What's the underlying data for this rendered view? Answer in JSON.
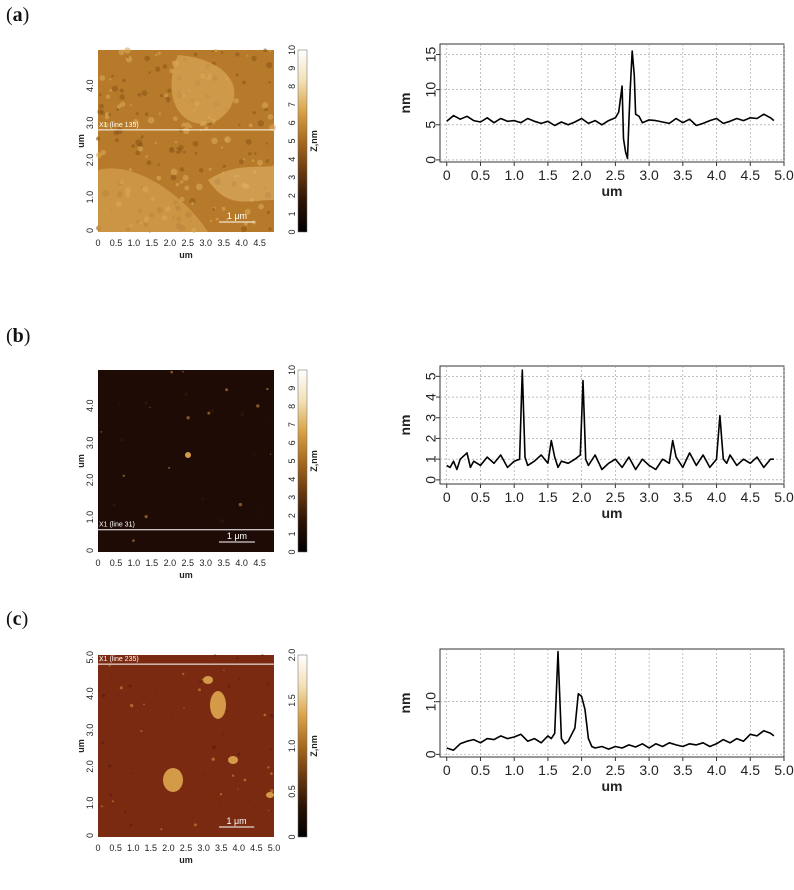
{
  "panels": [
    {
      "label_open": "(",
      "label_letter": "a",
      "label_close": ")",
      "afm": {
        "line_label": "X1 (line 135)",
        "scale_bar": "1 μm",
        "x_axis_label": "um",
        "y_axis_label": "um",
        "x_ticks": [
          "0",
          "0.5",
          "1.0",
          "1.5",
          "2.0",
          "2.5",
          "3.0",
          "3.5",
          "4.0",
          "4.5"
        ],
        "y_ticks": [
          "0",
          "1.0",
          "2.0",
          "3.0",
          "4.0"
        ],
        "colorbar_label": "Z,nm",
        "colorbar_ticks": [
          "0",
          "1",
          "2",
          "3",
          "4",
          "5",
          "6",
          "7",
          "8",
          "9",
          "10"
        ],
        "line_position_um": 2.75
      }
    },
    {
      "label_open": "(",
      "label_letter": "b",
      "label_close": ")",
      "afm": {
        "line_label": "X1 (line 31)",
        "scale_bar": "1 μm",
        "x_axis_label": "um",
        "y_axis_label": "um",
        "x_ticks": [
          "0",
          "0.5",
          "1.0",
          "1.5",
          "2.0",
          "2.5",
          "3.0",
          "3.5",
          "4.0",
          "4.5"
        ],
        "y_ticks": [
          "0",
          "1.0",
          "2.0",
          "3.0",
          "4.0"
        ],
        "colorbar_label": "Z,nm",
        "colorbar_ticks": [
          "0",
          "1",
          "2",
          "3",
          "4",
          "5",
          "6",
          "7",
          "8",
          "9",
          "10"
        ],
        "line_position_um": 0.6
      }
    },
    {
      "label_open": "(",
      "label_letter": "c",
      "label_close": ")",
      "afm": {
        "line_label": "X1 (line 235)",
        "scale_bar": "1 μm",
        "x_axis_label": "um",
        "y_axis_label": "um",
        "x_ticks": [
          "0",
          "0.5",
          "1.0",
          "1.5",
          "2.0",
          "2.5",
          "3.0",
          "3.5",
          "4.0",
          "4.5",
          "5.0"
        ],
        "y_ticks": [
          "0",
          "1.0",
          "2.0",
          "3.0",
          "4.0",
          "5.0"
        ],
        "colorbar_label": "Z,nm",
        "colorbar_ticks": [
          "0",
          "0.5",
          "1.0",
          "1.5",
          "2.0"
        ],
        "line_position_um": 4.75
      }
    }
  ],
  "chart_data": [
    {
      "type": "line",
      "xlabel": "um",
      "ylabel": "nm",
      "xlim": [
        -0.1,
        5.0
      ],
      "ylim": [
        -0.3,
        16.5
      ],
      "x_ticks": [
        "0",
        "0.5",
        "1.0",
        "1.5",
        "2.0",
        "2.5",
        "3.0",
        "3.5",
        "4.0",
        "4.5",
        "5.0"
      ],
      "y_ticks": [
        "0",
        "5",
        "10",
        "15"
      ],
      "grid": true,
      "series": [
        {
          "x": [
            0,
            0.1,
            0.2,
            0.3,
            0.4,
            0.5,
            0.6,
            0.7,
            0.8,
            0.9,
            1.0,
            1.1,
            1.2,
            1.3,
            1.4,
            1.5,
            1.6,
            1.7,
            1.8,
            1.9,
            2.0,
            2.1,
            2.2,
            2.3,
            2.4,
            2.5,
            2.55,
            2.6,
            2.62,
            2.65,
            2.68,
            2.7,
            2.72,
            2.75,
            2.78,
            2.8,
            2.85,
            2.9,
            3.0,
            3.1,
            3.2,
            3.3,
            3.4,
            3.5,
            3.6,
            3.7,
            3.8,
            3.9,
            4.0,
            4.1,
            4.2,
            4.3,
            4.4,
            4.5,
            4.6,
            4.7,
            4.8,
            4.85
          ],
          "y": [
            5.5,
            6.3,
            5.8,
            6.2,
            5.6,
            5.4,
            6.0,
            5.3,
            5.9,
            5.5,
            5.6,
            5.3,
            5.9,
            5.5,
            5.2,
            5.5,
            4.9,
            5.4,
            5.0,
            5.4,
            5.9,
            5.2,
            5.6,
            5.0,
            5.6,
            6.0,
            6.8,
            10.5,
            3.0,
            1.2,
            0.2,
            5.5,
            10.0,
            15.5,
            12.0,
            6.5,
            6.2,
            5.3,
            5.7,
            5.6,
            5.4,
            5.2,
            5.9,
            5.3,
            5.8,
            4.9,
            5.2,
            5.6,
            5.9,
            5.2,
            5.5,
            5.9,
            5.6,
            6.0,
            5.9,
            6.5,
            6.0,
            5.6
          ]
        }
      ]
    },
    {
      "type": "line",
      "xlabel": "um",
      "ylabel": "nm",
      "xlim": [
        -0.1,
        5.0
      ],
      "ylim": [
        -0.2,
        5.5
      ],
      "x_ticks": [
        "0",
        "0.5",
        "1.0",
        "1.5",
        "2.0",
        "2.5",
        "3.0",
        "3.5",
        "4.0",
        "4.5",
        "5.0"
      ],
      "y_ticks": [
        "0",
        "1",
        "2",
        "3",
        "4",
        "5"
      ],
      "grid": true,
      "series": [
        {
          "x": [
            0,
            0.05,
            0.1,
            0.15,
            0.2,
            0.3,
            0.35,
            0.4,
            0.5,
            0.6,
            0.7,
            0.8,
            0.9,
            1.0,
            1.08,
            1.12,
            1.16,
            1.2,
            1.3,
            1.4,
            1.5,
            1.55,
            1.6,
            1.65,
            1.7,
            1.8,
            1.9,
            1.98,
            2.02,
            2.06,
            2.1,
            2.2,
            2.3,
            2.4,
            2.5,
            2.6,
            2.7,
            2.8,
            2.9,
            3.0,
            3.1,
            3.2,
            3.3,
            3.35,
            3.4,
            3.5,
            3.6,
            3.7,
            3.8,
            3.9,
            4.0,
            4.05,
            4.1,
            4.15,
            4.2,
            4.3,
            4.4,
            4.5,
            4.6,
            4.7,
            4.8,
            4.85
          ],
          "y": [
            0.7,
            0.6,
            0.9,
            0.5,
            1.0,
            1.3,
            0.6,
            0.9,
            0.7,
            1.1,
            0.8,
            1.2,
            0.6,
            0.9,
            1.0,
            5.3,
            1.1,
            0.7,
            0.9,
            1.2,
            0.8,
            1.9,
            1.1,
            0.6,
            0.9,
            0.8,
            1.0,
            1.2,
            4.8,
            1.0,
            0.7,
            1.2,
            0.5,
            0.8,
            1.0,
            0.6,
            1.1,
            0.5,
            1.0,
            0.7,
            0.5,
            1.0,
            0.8,
            1.9,
            1.1,
            0.6,
            1.3,
            0.7,
            1.2,
            0.6,
            1.0,
            3.1,
            1.0,
            0.8,
            1.2,
            0.7,
            1.0,
            0.8,
            1.1,
            0.6,
            1.0,
            1.0
          ]
        }
      ]
    },
    {
      "type": "line",
      "xlabel": "um",
      "ylabel": "nm",
      "xlim": [
        -0.1,
        5.0
      ],
      "ylim": [
        -0.05,
        2.0
      ],
      "x_ticks": [
        "0",
        "0.5",
        "1.0",
        "1.5",
        "2.0",
        "2.5",
        "3.0",
        "3.5",
        "4.0",
        "4.5",
        "5.0"
      ],
      "y_ticks": [
        "0",
        "1.0"
      ],
      "grid": true,
      "series": [
        {
          "x": [
            0,
            0.1,
            0.2,
            0.3,
            0.4,
            0.5,
            0.6,
            0.7,
            0.8,
            0.9,
            1.0,
            1.1,
            1.2,
            1.3,
            1.4,
            1.5,
            1.55,
            1.6,
            1.65,
            1.7,
            1.75,
            1.8,
            1.9,
            1.95,
            2.0,
            2.05,
            2.1,
            2.15,
            2.2,
            2.3,
            2.4,
            2.5,
            2.6,
            2.7,
            2.8,
            2.9,
            3.0,
            3.1,
            3.2,
            3.3,
            3.4,
            3.5,
            3.6,
            3.7,
            3.8,
            3.9,
            4.0,
            4.1,
            4.2,
            4.3,
            4.4,
            4.5,
            4.6,
            4.7,
            4.8,
            4.85
          ],
          "y": [
            0.12,
            0.08,
            0.2,
            0.25,
            0.28,
            0.22,
            0.3,
            0.28,
            0.35,
            0.3,
            0.33,
            0.38,
            0.25,
            0.3,
            0.22,
            0.35,
            0.3,
            0.4,
            1.95,
            0.3,
            0.2,
            0.25,
            0.5,
            1.15,
            1.1,
            0.85,
            0.3,
            0.15,
            0.12,
            0.15,
            0.1,
            0.15,
            0.12,
            0.18,
            0.14,
            0.2,
            0.12,
            0.2,
            0.15,
            0.22,
            0.18,
            0.15,
            0.2,
            0.18,
            0.22,
            0.15,
            0.2,
            0.28,
            0.22,
            0.3,
            0.25,
            0.38,
            0.35,
            0.45,
            0.4,
            0.35
          ]
        }
      ]
    }
  ]
}
